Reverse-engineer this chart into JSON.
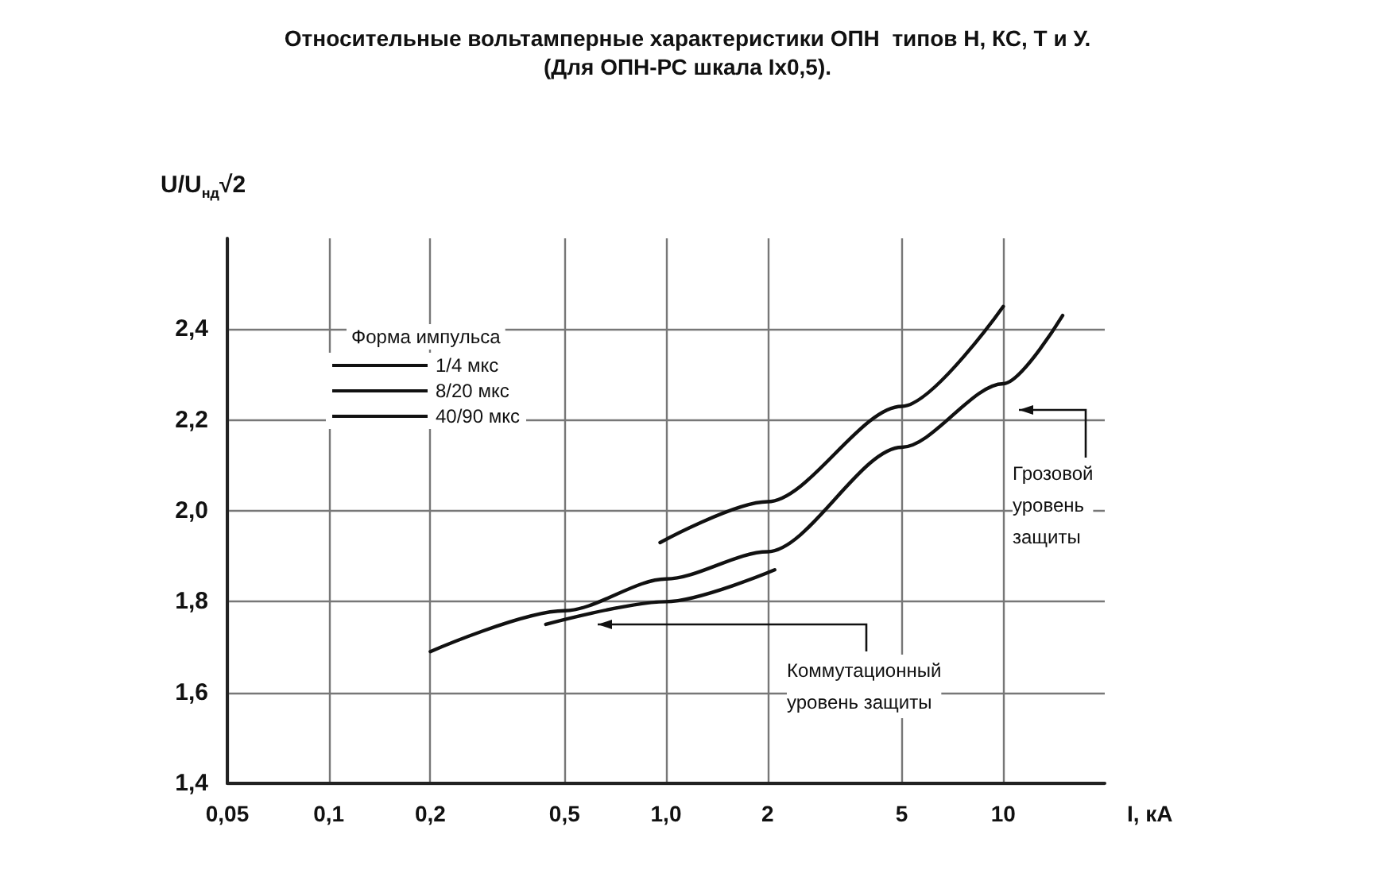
{
  "chart_data": {
    "type": "line",
    "title": "Относительные вольтамперные характеристики ОПН  типов Н, КС, Т и У.",
    "subtitle": "(Для ОПН-РС шкала Ix0,5).",
    "xlabel": "I, кА",
    "ylabel": "U/U$_{нд}$√2",
    "legend_title": "Форма импульса",
    "log": "x",
    "xlim": [
      0.05,
      20
    ],
    "xticks": [
      {
        "value": 0.05,
        "label": "0,05"
      },
      {
        "value": 0.1,
        "label": "0,1"
      },
      {
        "value": 0.2,
        "label": "0,2"
      },
      {
        "value": 0.5,
        "label": "0,5"
      },
      {
        "value": 1,
        "label": "1,0"
      },
      2,
      5,
      10
    ],
    "ylim": [
      1.4,
      2.6
    ],
    "yticks": [
      {
        "value": 1.4,
        "label": "1,4"
      },
      {
        "value": 1.6,
        "label": "1,6"
      },
      {
        "value": 1.8,
        "label": "1,8"
      },
      {
        "value": 2.0,
        "label": "2,0"
      },
      {
        "value": 2.2,
        "label": "2,2"
      },
      {
        "value": 2.4,
        "label": "2,4"
      }
    ],
    "grid": true,
    "legend": "top left",
    "marker": "none",
    "line_style": "solid",
    "series": [
      {
        "name": "1/4 мкс",
        "color": "#111111",
        "x": [
          0.96,
          2,
          5,
          10
        ],
        "values": [
          1.93,
          2.02,
          2.23,
          2.45
        ]
      },
      {
        "name": "8/20 мкс",
        "color": "#111111",
        "x": [
          0.2,
          0.5,
          1,
          2,
          5,
          10,
          15
        ],
        "values": [
          1.69,
          1.78,
          1.85,
          1.91,
          2.14,
          2.28,
          2.43
        ]
      },
      {
        "name": "40/90 мкс",
        "color": "#111111",
        "x": [
          0.44,
          1,
          2.1
        ],
        "values": [
          1.75,
          1.8,
          1.87
        ]
      }
    ],
    "annotations": [
      "Грозовой\nуровень\nзащиты",
      "Коммутационный\nуровень защиты"
    ]
  }
}
